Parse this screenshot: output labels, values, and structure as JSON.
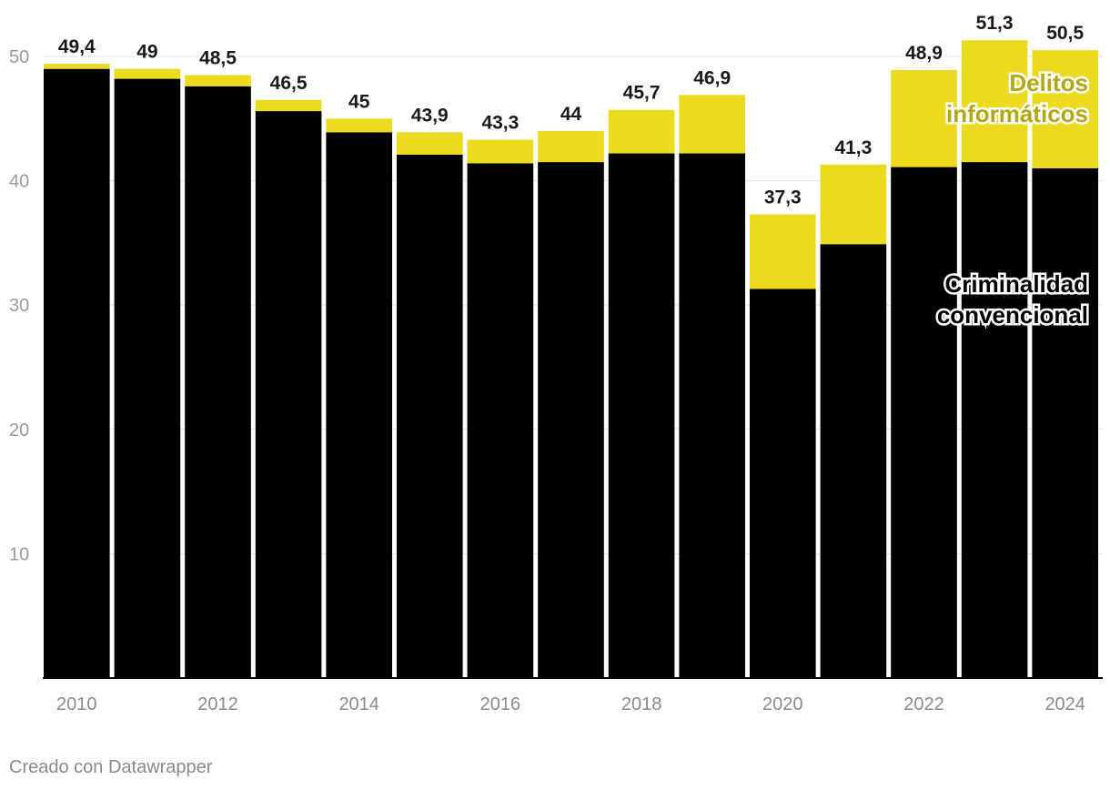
{
  "chart_data": {
    "type": "bar",
    "stacked": true,
    "categories": [
      "2010",
      "2011",
      "2012",
      "2013",
      "2014",
      "2015",
      "2016",
      "2017",
      "2018",
      "2019",
      "2020",
      "2021",
      "2022",
      "2023",
      "2024"
    ],
    "x_tick_labels": [
      "2010",
      "",
      "2012",
      "",
      "2014",
      "",
      "2016",
      "",
      "2018",
      "",
      "2020",
      "",
      "2022",
      "",
      "2024"
    ],
    "series": [
      {
        "name": "Criminalidad convencional",
        "color": "#000000",
        "values": [
          49.0,
          48.2,
          47.6,
          45.6,
          43.9,
          42.1,
          41.4,
          41.5,
          42.2,
          42.2,
          31.3,
          34.9,
          41.1,
          41.5,
          41.0
        ]
      },
      {
        "name": "Delitos informáticos",
        "color": "#ebda1d",
        "values": [
          0.4,
          0.8,
          0.9,
          0.9,
          1.1,
          1.8,
          1.9,
          2.5,
          3.5,
          4.7,
          6.0,
          6.4,
          7.8,
          9.8,
          9.5
        ]
      }
    ],
    "total_labels": [
      "49,4",
      "49",
      "48,5",
      "46,5",
      "45",
      "43,9",
      "43,3",
      "44",
      "45,7",
      "46,9",
      "37,3",
      "41,3",
      "48,9",
      "51,3",
      "50,5"
    ],
    "yticks": [
      10,
      20,
      30,
      40,
      50
    ],
    "ylim": [
      0,
      50
    ],
    "grid": true,
    "series_label_lines": {
      "Delitos informáticos": [
        "Delitos",
        "informáticos"
      ],
      "Criminalidad convencional": [
        "Criminalidad",
        "convencional"
      ]
    },
    "series_label_colors": {
      "Delitos informáticos": "#b3a814",
      "Criminalidad convencional": "#000000"
    },
    "title": "",
    "xlabel": "",
    "ylabel": ""
  },
  "footer": "Creado con Datawrapper"
}
